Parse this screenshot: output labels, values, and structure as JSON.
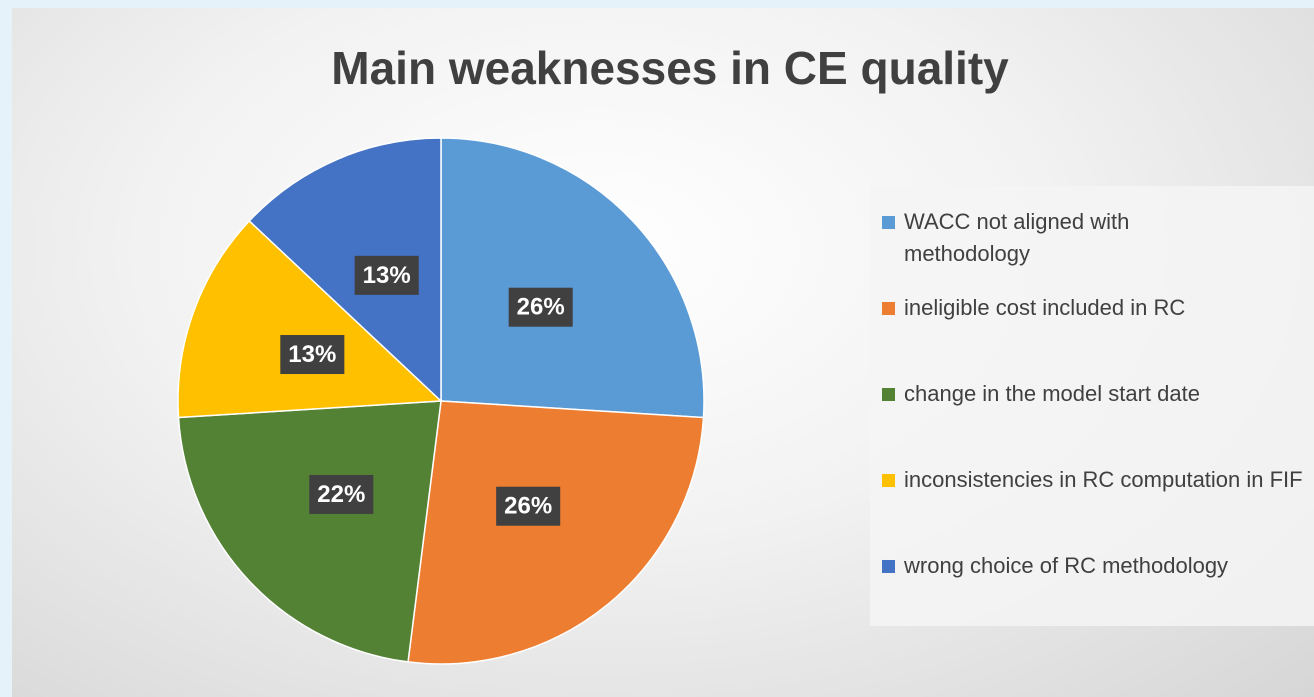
{
  "chart_data": {
    "type": "pie",
    "title": "Main weaknesses in CE quality",
    "categories": [
      "WACC not aligned with methodology",
      "ineligible cost included in RC",
      "change in the model start date",
      "inconsistencies in RC computation in FIF",
      "wrong choice of RC methodology"
    ],
    "values": [
      26,
      26,
      22,
      13,
      13
    ],
    "value_labels": [
      "26%",
      "26%",
      "22%",
      "13%",
      "13%"
    ],
    "colors": [
      "#5b9bd5",
      "#ed7d31",
      "#548235",
      "#ffc000",
      "#4472c4"
    ],
    "legend": "right"
  }
}
